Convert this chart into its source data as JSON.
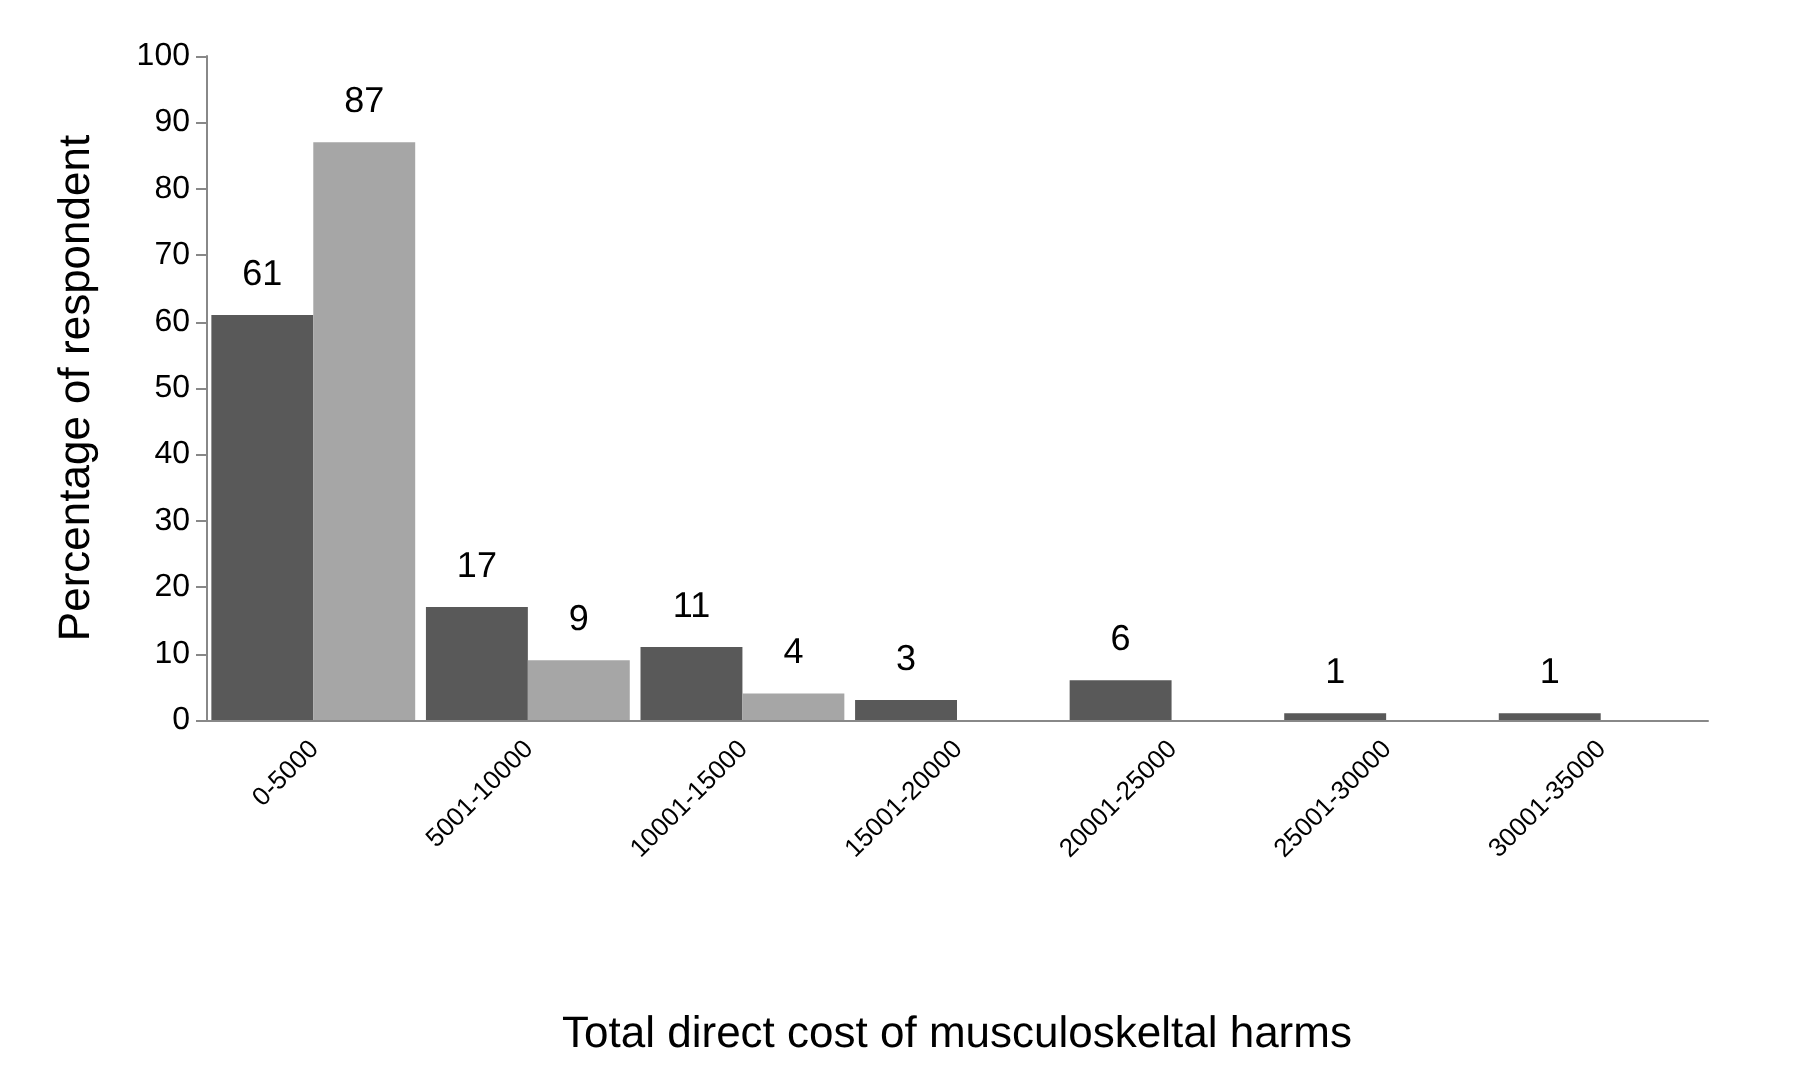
{
  "chart_data": {
    "type": "bar",
    "xlabel": "Total direct cost of musculoskeltal harms",
    "ylabel": "Percentage of respondent",
    "categories": [
      "0-5000",
      "5001-10000",
      "10001-15000",
      "15001-20000",
      "20001-25000",
      "25001-30000",
      "30001-35000"
    ],
    "series": [
      {
        "color": "#595959",
        "values": [
          61,
          17,
          11,
          3,
          6,
          1,
          1
        ]
      },
      {
        "color": "#a6a6a6",
        "values": [
          87,
          9,
          4,
          null,
          null,
          null,
          null
        ]
      }
    ],
    "ylim": [
      0,
      100
    ],
    "yticks": [
      0,
      10,
      20,
      30,
      40,
      50,
      60,
      70,
      80,
      90,
      100
    ],
    "grid": false,
    "data_labels": true
  }
}
